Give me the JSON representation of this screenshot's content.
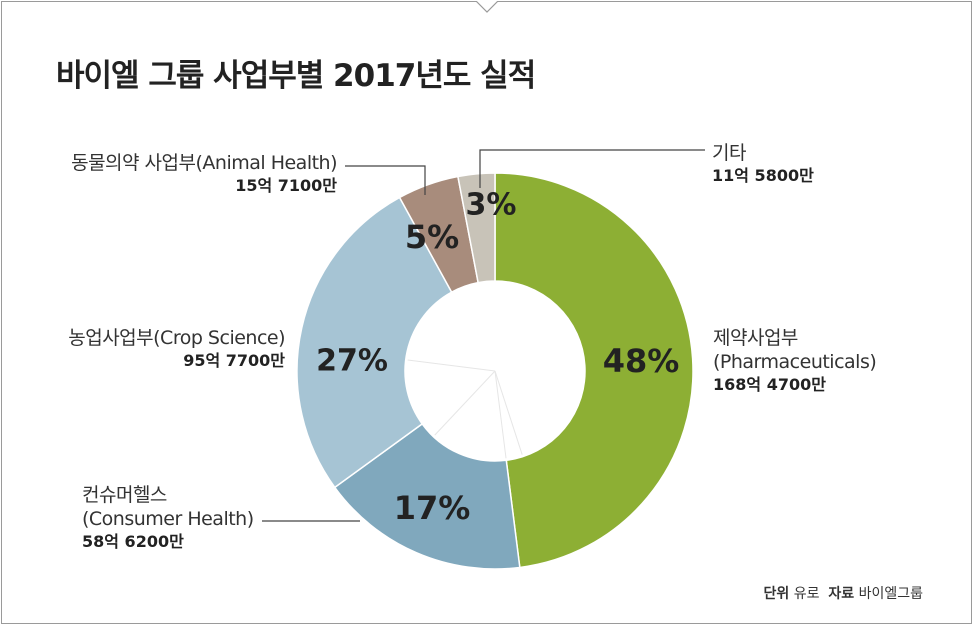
{
  "title": "바이엘 그룹 사업부별  2017년도 실적",
  "chart_data": {
    "type": "pie",
    "donut": true,
    "slices": [
      {
        "name": "제약사업부",
        "name2": "(Pharmaceuticals)",
        "percent": 48,
        "label": "48%",
        "amount": "168억 4700만",
        "color": "#8daf34"
      },
      {
        "name": "컨슈머헬스",
        "name2": "(Consumer Health)",
        "percent": 17,
        "label": "17%",
        "amount": "58억 6200만",
        "color": "#80a8bd"
      },
      {
        "name": "농업사업부(Crop Science)",
        "name2": "",
        "percent": 27,
        "label": "27%",
        "amount": "95억 7700만",
        "color": "#a6c4d4"
      },
      {
        "name": "동물의약 사업부(Animal Health)",
        "name2": "",
        "percent": 5,
        "label": "5%",
        "amount": "15억 7100만",
        "color": "#a88c7c"
      },
      {
        "name": "기타",
        "name2": "",
        "percent": 3,
        "label": "3%",
        "amount": "11억 5800만",
        "color": "#c8c3b8"
      }
    ]
  },
  "source": {
    "unit_key": "단위",
    "unit_val": "유로",
    "src_key": "자료",
    "src_val": "바이엘그룹"
  }
}
